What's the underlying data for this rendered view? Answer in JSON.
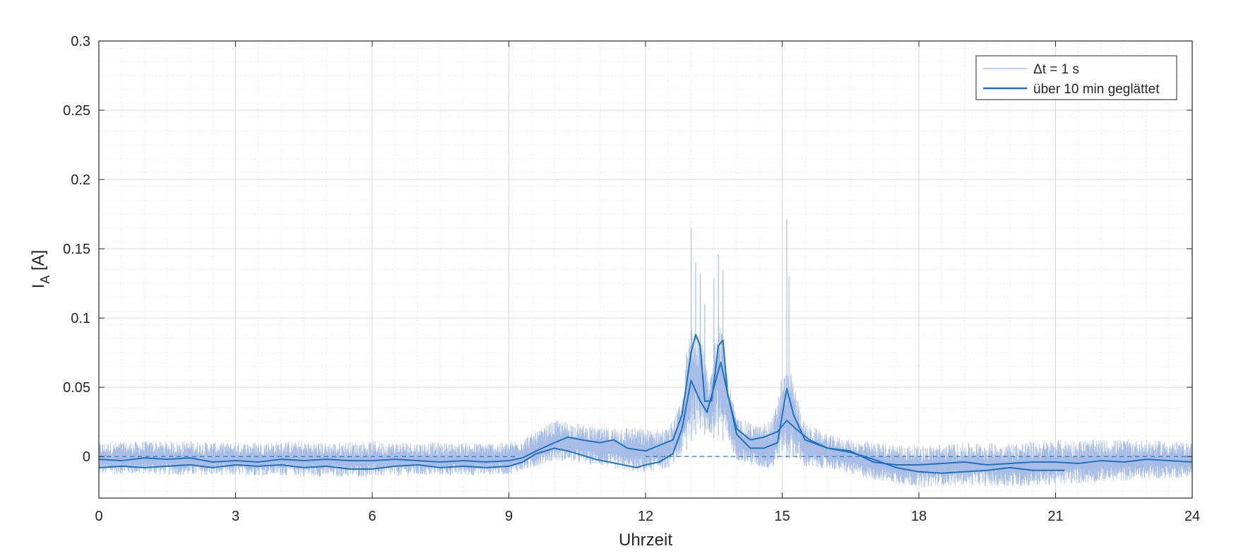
{
  "chart_data": {
    "type": "line",
    "xlabel": "Uhrzeit",
    "ylabel": "I",
    "ylabel_sub": "A",
    "ylabel_unit": " [A]",
    "xlim": [
      0,
      24
    ],
    "ylim": [
      -0.03,
      0.3
    ],
    "xticks": [
      0,
      3,
      6,
      9,
      12,
      15,
      18,
      21,
      24
    ],
    "yticks": [
      0,
      0.05,
      0.1,
      0.15,
      0.2,
      0.25,
      0.3
    ],
    "ytick_labels": [
      "0",
      "0.05",
      "0.1",
      "0.15",
      "0.2",
      "0.25",
      "0.3"
    ],
    "grid": true,
    "minor_grid": true,
    "legend_position": "top-right",
    "legend": [
      "Δt = 1 s",
      "über 10 min geglättet"
    ],
    "colors": {
      "raw": "#a8bde6",
      "smooth": "#1f72bd",
      "grid": "#d9d9d9",
      "minor_grid": "#ebebeb"
    },
    "zero_reference": {
      "y": 0,
      "style": "dashed",
      "x_segments": [
        [
          0,
          9.2
        ],
        [
          12.0,
          24
        ]
      ]
    },
    "series": [
      {
        "name": "Δt = 1 s",
        "kind": "raw-band",
        "x": [
          0,
          1,
          2,
          3,
          4,
          5,
          6,
          7,
          8,
          9,
          9.5,
          10,
          10.5,
          11,
          11.5,
          12,
          12.5,
          12.8,
          13.0,
          13.2,
          13.4,
          13.6,
          13.8,
          14.0,
          14.5,
          14.8,
          15.0,
          15.2,
          15.5,
          16,
          16.5,
          17,
          18,
          19,
          20,
          21,
          22,
          23,
          24
        ],
        "upper": [
          0.01,
          0.011,
          0.011,
          0.01,
          0.011,
          0.01,
          0.011,
          0.01,
          0.01,
          0.01,
          0.016,
          0.026,
          0.024,
          0.02,
          0.022,
          0.02,
          0.02,
          0.04,
          0.1,
          0.095,
          0.05,
          0.11,
          0.06,
          0.028,
          0.022,
          0.028,
          0.06,
          0.06,
          0.024,
          0.016,
          0.012,
          0.01,
          0.008,
          0.01,
          0.01,
          0.012,
          0.012,
          0.012,
          0.01
        ],
        "lower": [
          -0.014,
          -0.014,
          -0.015,
          -0.015,
          -0.015,
          -0.016,
          -0.016,
          -0.015,
          -0.015,
          -0.014,
          -0.01,
          -0.004,
          -0.006,
          -0.008,
          -0.012,
          -0.014,
          -0.01,
          -0.002,
          0.012,
          0.02,
          0.012,
          0.015,
          0.008,
          -0.004,
          -0.01,
          -0.012,
          0.0,
          -0.002,
          -0.01,
          -0.01,
          -0.014,
          -0.018,
          -0.024,
          -0.022,
          -0.024,
          -0.022,
          -0.02,
          -0.018,
          -0.016
        ],
        "spikes": [
          [
            13.0,
            0.165
          ],
          [
            13.1,
            0.14
          ],
          [
            13.2,
            0.132
          ],
          [
            13.3,
            0.11
          ],
          [
            13.5,
            0.128
          ],
          [
            13.6,
            0.146
          ],
          [
            13.7,
            0.135
          ],
          [
            15.1,
            0.171
          ],
          [
            15.15,
            0.13
          ],
          [
            12.9,
            0.075
          ]
        ]
      },
      {
        "name": "über 10 min geglättet",
        "kind": "smooth",
        "x": [
          0,
          0.5,
          1,
          1.5,
          2,
          2.5,
          3,
          3.5,
          4,
          4.5,
          5,
          5.5,
          6,
          6.5,
          7,
          7.5,
          8,
          8.5,
          9,
          9.3,
          9.6,
          10,
          10.3,
          10.6,
          11,
          11.3,
          11.6,
          12,
          12.3,
          12.6,
          12.8,
          13.0,
          13.1,
          13.2,
          13.3,
          13.45,
          13.6,
          13.7,
          13.8,
          14.0,
          14.3,
          14.6,
          14.9,
          15.1,
          15.3,
          15.6,
          16,
          16.5,
          17,
          17.5,
          18,
          18.5,
          19,
          19.5,
          20,
          20.5,
          21,
          21.5,
          22,
          22.5,
          23,
          23.5,
          24
        ],
        "y": [
          -0.002,
          -0.003,
          -0.001,
          -0.002,
          -0.001,
          -0.004,
          -0.003,
          -0.004,
          -0.002,
          -0.003,
          -0.002,
          -0.003,
          -0.003,
          -0.002,
          -0.003,
          -0.004,
          -0.003,
          -0.004,
          -0.003,
          -0.001,
          0.004,
          0.01,
          0.014,
          0.012,
          0.01,
          0.012,
          0.006,
          0.004,
          0.008,
          0.012,
          0.03,
          0.075,
          0.088,
          0.08,
          0.04,
          0.04,
          0.08,
          0.084,
          0.045,
          0.02,
          0.012,
          0.014,
          0.018,
          0.026,
          0.02,
          0.012,
          0.006,
          0.004,
          -0.004,
          -0.006,
          -0.006,
          -0.005,
          -0.004,
          -0.006,
          -0.005,
          -0.004,
          -0.004,
          -0.005,
          -0.003,
          -0.004,
          -0.002,
          -0.003,
          -0.004
        ]
      },
      {
        "name": "",
        "kind": "smooth",
        "x": [
          0,
          0.5,
          1,
          1.5,
          2,
          2.5,
          3,
          3.5,
          4,
          4.5,
          5,
          5.5,
          6,
          6.5,
          7,
          7.5,
          8,
          8.5,
          9,
          9.3,
          9.6,
          10,
          10.3,
          10.6,
          10.9,
          11.2,
          11.5,
          11.8,
          12.0,
          12.3,
          12.6,
          12.8,
          13.0,
          13.2,
          13.35,
          13.5,
          13.65,
          13.8,
          14.0,
          14.3,
          14.6,
          14.9,
          15.0,
          15.1,
          15.25,
          15.5,
          16,
          16.5,
          17,
          17.5,
          18,
          18.5,
          19,
          19.5,
          20,
          20.5,
          21,
          21.2
        ],
        "y": [
          -0.008,
          -0.007,
          -0.008,
          -0.007,
          -0.006,
          -0.008,
          -0.006,
          -0.007,
          -0.006,
          -0.008,
          -0.007,
          -0.009,
          -0.009,
          -0.007,
          -0.006,
          -0.008,
          -0.007,
          -0.008,
          -0.007,
          -0.004,
          0.002,
          0.006,
          0.004,
          0.001,
          -0.002,
          -0.004,
          -0.006,
          -0.008,
          -0.006,
          -0.004,
          0.002,
          0.02,
          0.055,
          0.04,
          0.032,
          0.05,
          0.068,
          0.046,
          0.016,
          0.006,
          0.006,
          0.01,
          0.03,
          0.049,
          0.03,
          0.012,
          0.006,
          0.003,
          -0.002,
          -0.008,
          -0.011,
          -0.012,
          -0.011,
          -0.01,
          -0.008,
          -0.01,
          -0.01,
          -0.01
        ]
      }
    ]
  }
}
